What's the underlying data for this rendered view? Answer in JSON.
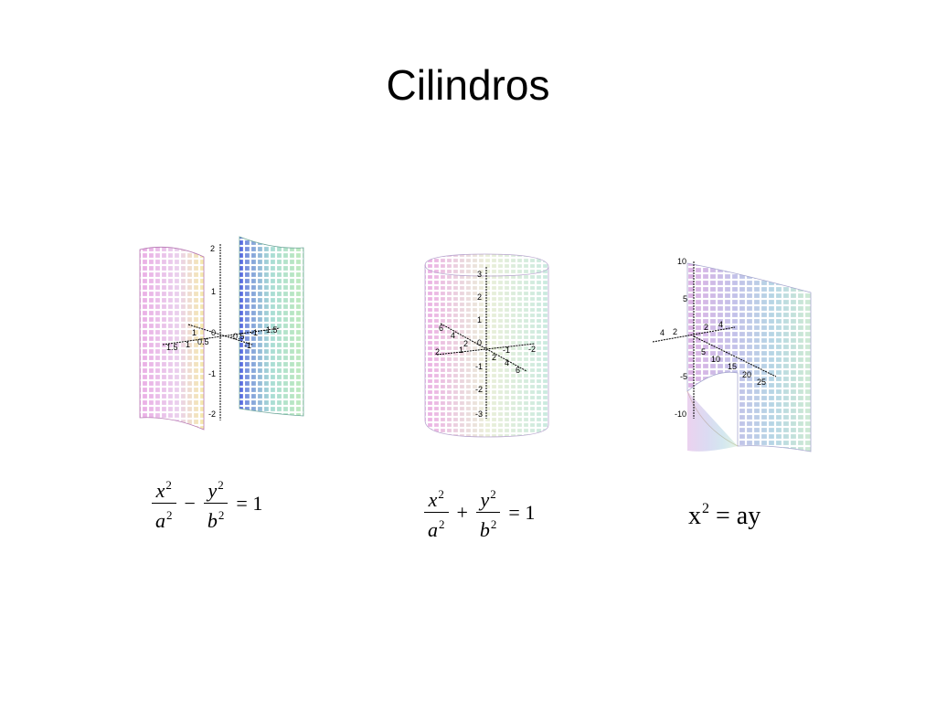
{
  "title": "Cilindros",
  "colors": {
    "hyperbolic_left_sheet": "#d89ad8",
    "hyperbolic_right_sheet": "#9fd4c4",
    "elliptic": "#cfd9ee",
    "parabolic": "#b8c9e8",
    "axis": "#000000"
  },
  "plots": {
    "hyperbolic": {
      "equation": {
        "x": "x",
        "a": "a",
        "y": "y",
        "b": "b",
        "exp": "2",
        "op": "−",
        "rhs": "= 1"
      },
      "ticks_vertical": [
        "2",
        "1",
        "0",
        "-1",
        "-2"
      ],
      "ticks_axis": [
        "1.5",
        "1",
        "0.5",
        "-0.5",
        "-1",
        "-1.5",
        "1",
        "-1"
      ]
    },
    "elliptic": {
      "equation": {
        "x": "x",
        "a": "a",
        "y": "y",
        "b": "b",
        "exp": "2",
        "op": "+",
        "rhs": "= 1"
      },
      "ticks_vertical": [
        "3",
        "2",
        "1",
        "0",
        "-1",
        "-2",
        "-3"
      ],
      "ticks_axis": [
        "6",
        "4",
        "2",
        "2",
        "1",
        "-1",
        "-2",
        "2",
        "4",
        "6"
      ]
    },
    "parabolic": {
      "equation": {
        "lhs": "x",
        "exp": "2",
        "rhs": " = ay"
      },
      "ticks_vertical": [
        "10",
        "5",
        "-5",
        "-10"
      ],
      "ticks_axis": [
        "4",
        "2",
        "2",
        "4",
        "5",
        "10",
        "15",
        "20",
        "25"
      ]
    }
  }
}
